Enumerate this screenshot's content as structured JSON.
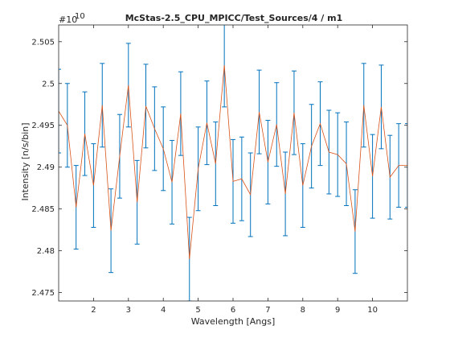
{
  "chart_data": {
    "type": "line",
    "title": "McStas-2.5_CPU_MPICC/Test_Sources/4 / m1",
    "xlabel": "Wavelength [Angs]",
    "ylabel": "Intensity [n/s/bin]",
    "y_exponent_base": "#10",
    "y_exponent_power": "10",
    "xlim": [
      1.0,
      11.0
    ],
    "ylim": [
      2.474,
      2.507
    ],
    "x_ticks": [
      2,
      3,
      4,
      5,
      6,
      7,
      8,
      9,
      10
    ],
    "x_tick_labels": [
      "2",
      "3",
      "4",
      "5",
      "6",
      "7",
      "8",
      "9",
      "10"
    ],
    "y_ticks": [
      2.475,
      2.48,
      2.485,
      2.49,
      2.495,
      2.5,
      2.505
    ],
    "y_tick_labels": [
      "2.475",
      "2.48",
      "2.485",
      "2.49",
      "2.495",
      "2.5",
      "2.505"
    ],
    "grid": false,
    "colors": {
      "line": "#d95319",
      "errorbar": "#0072bd",
      "axes": "#262626"
    },
    "series": [
      {
        "x": [
          1.0,
          1.25,
          1.5,
          1.75,
          2.0,
          2.25,
          2.5,
          2.75,
          3.0,
          3.25,
          3.5,
          3.75,
          4.0,
          4.25,
          4.5,
          4.75,
          5.0,
          5.25,
          5.5,
          5.75,
          6.0,
          6.25,
          6.5,
          6.75,
          7.0,
          7.25,
          7.5,
          7.75,
          8.0,
          8.25,
          8.5,
          8.75,
          9.0,
          9.25,
          9.5,
          9.75,
          10.0,
          10.25,
          10.5,
          10.75,
          11.0
        ],
        "y": [
          2.4967,
          2.495,
          2.4852,
          2.494,
          2.4878,
          2.4974,
          2.4824,
          2.4913,
          2.4998,
          2.4858,
          2.4973,
          2.4946,
          2.4922,
          2.4882,
          2.4964,
          2.479,
          2.4898,
          2.4953,
          2.4904,
          2.5022,
          2.4883,
          2.4886,
          2.4867,
          2.4966,
          2.4906,
          2.4951,
          2.4868,
          2.4965,
          2.4878,
          2.4925,
          2.4952,
          2.4918,
          2.4915,
          2.4904,
          2.4823,
          2.4974,
          2.4889,
          2.4972,
          2.4888,
          2.4902,
          2.4902
        ],
        "err": [
          0.005,
          0.005,
          0.005,
          0.005,
          0.005,
          0.005,
          0.005,
          0.005,
          0.005,
          0.005,
          0.005,
          0.005,
          0.005,
          0.005,
          0.005,
          0.005,
          0.005,
          0.005,
          0.005,
          0.005,
          0.005,
          0.005,
          0.005,
          0.005,
          0.005,
          0.005,
          0.005,
          0.005,
          0.005,
          0.005,
          0.005,
          0.005,
          0.005,
          0.005,
          0.005,
          0.005,
          0.005,
          0.005,
          0.005,
          0.005,
          0.005
        ]
      }
    ]
  }
}
